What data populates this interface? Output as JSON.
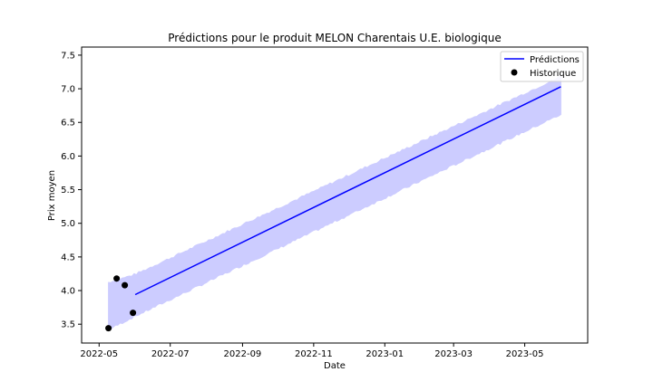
{
  "chart_data": {
    "type": "line",
    "title": "Prédictions pour le produit MELON Charentais U.E. biologique",
    "xlabel": "Date",
    "ylabel": "Prix moyen",
    "x_ticks": [
      "2022-05",
      "2022-07",
      "2022-09",
      "2022-11",
      "2023-01",
      "2023-03",
      "2023-05"
    ],
    "y_ticks": [
      "3.5",
      "4.0",
      "4.5",
      "5.0",
      "5.5",
      "6.0",
      "6.5",
      "7.0",
      "7.5"
    ],
    "xlim": [
      "2022-04-16",
      "2023-06-24"
    ],
    "ylim": [
      3.22,
      7.62
    ],
    "legend_position": "top-right",
    "grid": false,
    "series": [
      {
        "name": "Prédictions",
        "kind": "line",
        "color": "#0000ff",
        "x": [
          "2022-06-01",
          "2023-06-01"
        ],
        "y": [
          3.94,
          7.03
        ]
      },
      {
        "name": "Historique",
        "kind": "scatter",
        "color": "#000000",
        "x": [
          "2022-05-09",
          "2022-05-16",
          "2022-05-23",
          "2022-05-30"
        ],
        "y": [
          3.44,
          4.18,
          4.08,
          3.67
        ]
      }
    ],
    "confidence_band": {
      "color": "#ccccff",
      "x": [
        "2022-05-09",
        "2022-06-01",
        "2023-06-01"
      ],
      "lower": [
        3.42,
        3.62,
        6.62
      ],
      "upper": [
        4.12,
        4.24,
        7.18
      ]
    }
  }
}
